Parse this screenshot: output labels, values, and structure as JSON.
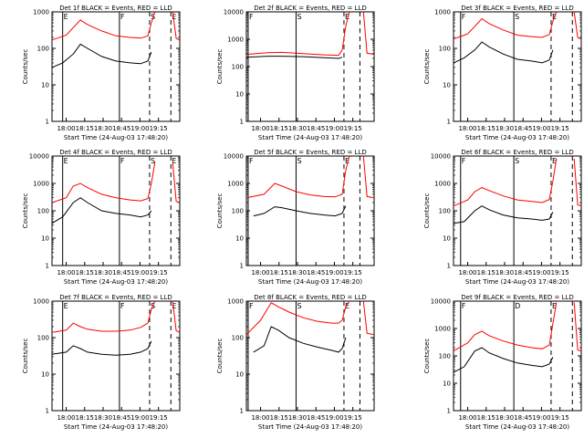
{
  "common": {
    "xlabel": "Start Time (24-Aug-03 17:48:20)",
    "ylabel": "Counts/sec",
    "x_tick_labels": [
      "18:00",
      "18:15",
      "18:30",
      "18:45",
      "19:00",
      "19:15"
    ]
  },
  "chart_data": [
    {
      "type": "line",
      "title": "Det 1f BLACK = Events, RED = LLD",
      "xlabel": "Start Time (24-Aug-03 17:48:20)",
      "ylabel": "Counts/sec",
      "yscale": "log",
      "ylim": [
        1,
        1000
      ],
      "yticks": [
        "1",
        "10",
        "100",
        "1000"
      ],
      "xticks": [
        "18:00",
        "18:15",
        "18:30",
        "18:45",
        "19:00",
        "19:15"
      ],
      "markers": [
        "E",
        "F",
        "S",
        "E"
      ],
      "series": [
        {
          "name": "Events",
          "color": "#000000",
          "points": [
            [
              0,
              30
            ],
            [
              3,
              40
            ],
            [
              6,
              70
            ],
            [
              8,
              130
            ],
            [
              10,
              100
            ],
            [
              14,
              60
            ],
            [
              18,
              45
            ],
            [
              22,
              40
            ],
            [
              25,
              38
            ],
            [
              27,
              45
            ],
            [
              28,
              80
            ]
          ]
        },
        {
          "name": "LLD",
          "color": "#ff0000",
          "points": [
            [
              0,
              170
            ],
            [
              4,
              230
            ],
            [
              8,
              600
            ],
            [
              10,
              450
            ],
            [
              14,
              300
            ],
            [
              18,
              220
            ],
            [
              22,
              200
            ],
            [
              25,
              190
            ],
            [
              27,
              220
            ],
            [
              28,
              500
            ],
            [
              29,
              1000
            ]
          ]
        }
      ]
    },
    {
      "type": "line",
      "title": "Det 2f BLACK = Events, RED = LLD",
      "xlabel": "Start Time (24-Aug-03 17:48:20)",
      "ylabel": "Counts/sec",
      "yscale": "log",
      "ylim": [
        1,
        10000
      ],
      "yticks": [
        "1",
        "10",
        "100",
        "1000",
        "10000"
      ],
      "xticks": [
        "18:00",
        "18:15",
        "18:30",
        "18:45",
        "19:00",
        "19:15"
      ],
      "markers": [
        "F",
        "S",
        "E"
      ],
      "series": [
        {
          "name": "Events",
          "color": "#000000",
          "points": [
            [
              0,
              220
            ],
            [
              6,
              240
            ],
            [
              10,
              240
            ],
            [
              16,
              230
            ],
            [
              22,
              210
            ],
            [
              26,
              200
            ],
            [
              27,
              220
            ]
          ]
        },
        {
          "name": "LLD",
          "color": "#ff0000",
          "points": [
            [
              0,
              280
            ],
            [
              6,
              320
            ],
            [
              10,
              330
            ],
            [
              16,
              300
            ],
            [
              22,
              270
            ],
            [
              26,
              260
            ],
            [
              27,
              400
            ],
            [
              28,
              3000
            ],
            [
              29,
              10000
            ]
          ]
        }
      ]
    },
    {
      "type": "line",
      "title": "Det 3f BLACK = Events, RED = LLD",
      "xlabel": "Start Time (24-Aug-03 17:48:20)",
      "ylabel": "Counts/sec",
      "yscale": "log",
      "ylim": [
        1,
        1000
      ],
      "yticks": [
        "1",
        "10",
        "100",
        "1000"
      ],
      "xticks": [
        "18:00",
        "18:15",
        "18:30",
        "18:45",
        "19:00",
        "19:15"
      ],
      "markers": [
        "F",
        "S",
        "E"
      ],
      "series": [
        {
          "name": "Events",
          "color": "#000000",
          "points": [
            [
              0,
              40
            ],
            [
              3,
              55
            ],
            [
              6,
              90
            ],
            [
              8,
              150
            ],
            [
              10,
              110
            ],
            [
              14,
              70
            ],
            [
              18,
              50
            ],
            [
              22,
              45
            ],
            [
              25,
              40
            ],
            [
              27,
              48
            ],
            [
              28,
              90
            ]
          ]
        },
        {
          "name": "LLD",
          "color": "#ff0000",
          "points": [
            [
              0,
              180
            ],
            [
              4,
              250
            ],
            [
              8,
              650
            ],
            [
              10,
              480
            ],
            [
              14,
              320
            ],
            [
              18,
              230
            ],
            [
              22,
              210
            ],
            [
              25,
              200
            ],
            [
              27,
              240
            ],
            [
              28,
              550
            ],
            [
              29,
              1000
            ]
          ]
        }
      ]
    },
    {
      "type": "line",
      "title": "Det 4f BLACK = Events, RED = LLD",
      "xlabel": "Start Time (24-Aug-03 17:48:20)",
      "ylabel": "Counts/sec",
      "yscale": "log",
      "ylim": [
        1,
        10000
      ],
      "yticks": [
        "1",
        "10",
        "100",
        "1000",
        "10000"
      ],
      "xticks": [
        "18:00",
        "18:15",
        "18:30",
        "18:45",
        "19:00",
        "19:15"
      ],
      "markers": [
        "E",
        "F",
        "S",
        "E"
      ],
      "series": [
        {
          "name": "Events",
          "color": "#000000",
          "points": [
            [
              0,
              35
            ],
            [
              3,
              60
            ],
            [
              6,
              200
            ],
            [
              8,
              300
            ],
            [
              10,
              200
            ],
            [
              14,
              100
            ],
            [
              18,
              80
            ],
            [
              22,
              70
            ],
            [
              25,
              60
            ],
            [
              27,
              70
            ],
            [
              28,
              100
            ]
          ]
        },
        {
          "name": "LLD",
          "color": "#ff0000",
          "points": [
            [
              0,
              200
            ],
            [
              4,
              300
            ],
            [
              6,
              800
            ],
            [
              8,
              1000
            ],
            [
              10,
              700
            ],
            [
              14,
              400
            ],
            [
              18,
              300
            ],
            [
              22,
              250
            ],
            [
              25,
              230
            ],
            [
              27,
              280
            ],
            [
              28,
              1000
            ],
            [
              29,
              6000
            ]
          ]
        }
      ]
    },
    {
      "type": "line",
      "title": "Det 5f BLACK = Events, RED = LLD",
      "xlabel": "Start Time (24-Aug-03 17:48:20)",
      "ylabel": "Counts/sec",
      "yscale": "log",
      "ylim": [
        1,
        10000
      ],
      "yticks": [
        "1",
        "10",
        "100",
        "1000",
        "10000"
      ],
      "xticks": [
        "18:00",
        "18:15",
        "18:30",
        "18:45",
        "19:00",
        "19:15"
      ],
      "markers": [
        "F",
        "S",
        "E"
      ],
      "series": [
        {
          "name": "Events",
          "color": "#000000",
          "points": [
            [
              2,
              65
            ],
            [
              5,
              80
            ],
            [
              8,
              140
            ],
            [
              10,
              130
            ],
            [
              14,
              100
            ],
            [
              18,
              80
            ],
            [
              22,
              70
            ],
            [
              25,
              65
            ],
            [
              27,
              80
            ],
            [
              28,
              150
            ]
          ]
        },
        {
          "name": "LLD",
          "color": "#ff0000",
          "points": [
            [
              0,
              300
            ],
            [
              5,
              400
            ],
            [
              8,
              1000
            ],
            [
              10,
              800
            ],
            [
              14,
              500
            ],
            [
              18,
              380
            ],
            [
              22,
              330
            ],
            [
              25,
              320
            ],
            [
              27,
              400
            ],
            [
              28,
              3000
            ],
            [
              29,
              10000
            ]
          ]
        }
      ]
    },
    {
      "type": "line",
      "title": "Det 6f BLACK = Events, RED = LLD",
      "xlabel": "Start Time (24-Aug-03 17:48:20)",
      "ylabel": "Counts/sec",
      "yscale": "log",
      "ylim": [
        1,
        10000
      ],
      "yticks": [
        "1",
        "10",
        "100",
        "1000",
        "10000"
      ],
      "xticks": [
        "18:00",
        "18:15",
        "18:30",
        "18:45",
        "19:00",
        "19:15"
      ],
      "markers": [
        "F",
        "S",
        "E"
      ],
      "series": [
        {
          "name": "Events",
          "color": "#000000",
          "points": [
            [
              0,
              35
            ],
            [
              3,
              40
            ],
            [
              6,
              100
            ],
            [
              8,
              150
            ],
            [
              10,
              110
            ],
            [
              14,
              70
            ],
            [
              18,
              55
            ],
            [
              22,
              50
            ],
            [
              25,
              45
            ],
            [
              27,
              50
            ],
            [
              28,
              90
            ]
          ]
        },
        {
          "name": "LLD",
          "color": "#ff0000",
          "points": [
            [
              0,
              150
            ],
            [
              4,
              250
            ],
            [
              6,
              500
            ],
            [
              8,
              700
            ],
            [
              10,
              550
            ],
            [
              14,
              350
            ],
            [
              18,
              250
            ],
            [
              22,
              220
            ],
            [
              25,
              200
            ],
            [
              27,
              260
            ],
            [
              28,
              1200
            ],
            [
              29,
              8000
            ]
          ]
        }
      ]
    },
    {
      "type": "line",
      "title": "Det 7f BLACK = Events, RED = LLD",
      "xlabel": "Start Time (24-Aug-03 17:48:20)",
      "ylabel": "Counts/sec",
      "yscale": "log",
      "ylim": [
        1,
        1000
      ],
      "yticks": [
        "1",
        "10",
        "100",
        "1000"
      ],
      "xticks": [
        "18:00",
        "18:15",
        "18:30",
        "18:45",
        "19:00",
        "19:15"
      ],
      "markers": [
        "E",
        "F",
        "S",
        "E"
      ],
      "series": [
        {
          "name": "Events",
          "color": "#000000",
          "points": [
            [
              0,
              35
            ],
            [
              4,
              40
            ],
            [
              6,
              60
            ],
            [
              8,
              50
            ],
            [
              10,
              40
            ],
            [
              14,
              35
            ],
            [
              18,
              33
            ],
            [
              22,
              35
            ],
            [
              25,
              40
            ],
            [
              27,
              50
            ],
            [
              28,
              80
            ]
          ]
        },
        {
          "name": "LLD",
          "color": "#ff0000",
          "points": [
            [
              0,
              140
            ],
            [
              4,
              160
            ],
            [
              6,
              250
            ],
            [
              8,
              200
            ],
            [
              10,
              170
            ],
            [
              14,
              150
            ],
            [
              18,
              150
            ],
            [
              22,
              160
            ],
            [
              25,
              190
            ],
            [
              27,
              250
            ],
            [
              28,
              600
            ],
            [
              29,
              1000
            ]
          ]
        }
      ]
    },
    {
      "type": "line",
      "title": "Det 8f BLACK = Events, RED = LLD",
      "xlabel": "Start Time (24-Aug-03 17:48:20)",
      "ylabel": "Counts/sec",
      "yscale": "log",
      "ylim": [
        1,
        1000
      ],
      "yticks": [
        "1",
        "10",
        "100",
        "1000"
      ],
      "xticks": [
        "18:00",
        "18:15",
        "18:30",
        "18:45",
        "19:00",
        "19:15"
      ],
      "markers": [
        "F",
        "S",
        "E"
      ],
      "series": [
        {
          "name": "Events",
          "color": "#000000",
          "points": [
            [
              2,
              40
            ],
            [
              5,
              60
            ],
            [
              7,
              200
            ],
            [
              9,
              160
            ],
            [
              12,
              100
            ],
            [
              16,
              70
            ],
            [
              20,
              55
            ],
            [
              24,
              45
            ],
            [
              26,
              40
            ],
            [
              27,
              50
            ],
            [
              28,
              100
            ]
          ]
        },
        {
          "name": "LLD",
          "color": "#ff0000",
          "points": [
            [
              0,
              120
            ],
            [
              4,
              300
            ],
            [
              7,
              900
            ],
            [
              9,
              700
            ],
            [
              12,
              500
            ],
            [
              16,
              350
            ],
            [
              20,
              280
            ],
            [
              24,
              250
            ],
            [
              26,
              250
            ],
            [
              27,
              300
            ],
            [
              28,
              700
            ],
            [
              29,
              1000
            ]
          ]
        }
      ]
    },
    {
      "type": "line",
      "title": "Det 9f BLACK = Events, RED = LLD",
      "xlabel": "Start Time (24-Aug-03 17:48:20)",
      "ylabel": "Counts/sec",
      "yscale": "log",
      "ylim": [
        1,
        10000
      ],
      "yticks": [
        "1",
        "10",
        "100",
        "1000",
        "10000"
      ],
      "xticks": [
        "18:00",
        "18:15",
        "18:30",
        "18:45",
        "19:00",
        "19:15"
      ],
      "markers": [
        "F",
        "D",
        "E"
      ],
      "series": [
        {
          "name": "Events",
          "color": "#000000",
          "points": [
            [
              0,
              25
            ],
            [
              3,
              40
            ],
            [
              6,
              150
            ],
            [
              8,
              200
            ],
            [
              10,
              130
            ],
            [
              14,
              80
            ],
            [
              18,
              55
            ],
            [
              22,
              45
            ],
            [
              25,
              40
            ],
            [
              27,
              50
            ],
            [
              28,
              90
            ]
          ]
        },
        {
          "name": "LLD",
          "color": "#ff0000",
          "points": [
            [
              0,
              150
            ],
            [
              4,
              300
            ],
            [
              6,
              600
            ],
            [
              8,
              800
            ],
            [
              10,
              550
            ],
            [
              14,
              350
            ],
            [
              18,
              250
            ],
            [
              22,
              200
            ],
            [
              25,
              180
            ],
            [
              27,
              250
            ],
            [
              28,
              1500
            ],
            [
              29,
              9000
            ]
          ]
        }
      ]
    }
  ]
}
